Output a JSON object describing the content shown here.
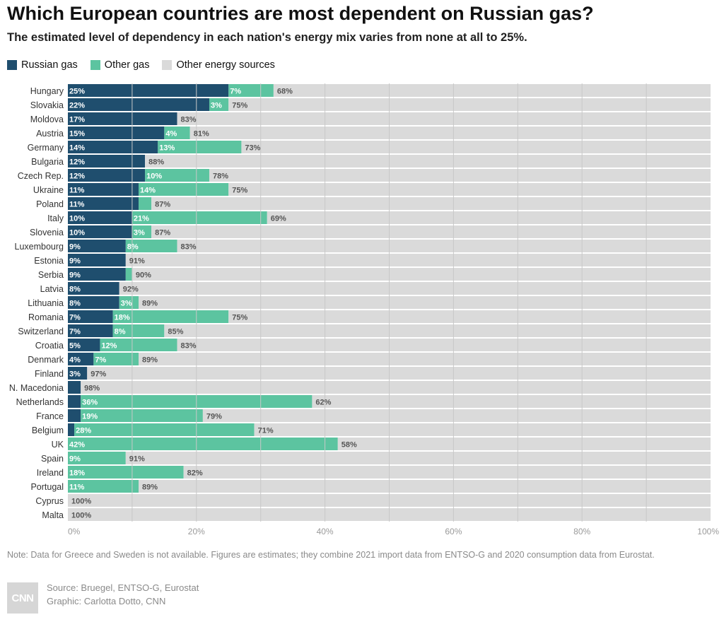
{
  "header": {
    "title": "Which European countries are most dependent on Russian gas?",
    "subtitle": "The estimated level of dependency in each nation's energy mix varies from none at all to 25%."
  },
  "legend": [
    {
      "label": "Russian gas",
      "color": "#1f4e6e"
    },
    {
      "label": "Other gas",
      "color": "#5cc4a0"
    },
    {
      "label": "Other energy sources",
      "color": "#dadada"
    }
  ],
  "chart_data": {
    "type": "bar",
    "stacked": true,
    "orientation": "horizontal",
    "categories": [
      "Hungary",
      "Slovakia",
      "Moldova",
      "Austria",
      "Germany",
      "Bulgaria",
      "Czech Rep.",
      "Ukraine",
      "Poland",
      "Italy",
      "Slovenia",
      "Luxembourg",
      "Estonia",
      "Serbia",
      "Latvia",
      "Lithuania",
      "Romania",
      "Switzerland",
      "Croatia",
      "Denmark",
      "Finland",
      "N. Macedonia",
      "Netherlands",
      "France",
      "Belgium",
      "UK",
      "Spain",
      "Ireland",
      "Portugal",
      "Cyprus",
      "Malta"
    ],
    "series": [
      {
        "name": "Russian gas",
        "color": "#1f4e6e",
        "values": [
          25,
          22,
          17,
          15,
          14,
          12,
          12,
          11,
          11,
          10,
          10,
          9,
          9,
          9,
          8,
          8,
          7,
          7,
          5,
          4,
          3,
          2,
          2,
          2,
          1,
          0,
          0,
          0,
          0,
          0,
          0
        ],
        "labels": [
          "25%",
          "22%",
          "17%",
          "15%",
          "14%",
          "12%",
          "12%",
          "11%",
          "11%",
          "10%",
          "10%",
          "9%",
          "9%",
          "9%",
          "8%",
          "8%",
          "7%",
          "7%",
          "5%",
          "4%",
          "3%",
          "",
          "",
          "",
          "",
          "",
          "",
          "",
          "",
          "",
          ""
        ]
      },
      {
        "name": "Other gas",
        "color": "#5cc4a0",
        "values": [
          7,
          3,
          0,
          4,
          13,
          0,
          10,
          14,
          2,
          21,
          3,
          8,
          0,
          1,
          0,
          3,
          18,
          8,
          12,
          7,
          0,
          0,
          36,
          19,
          28,
          42,
          9,
          18,
          11,
          0,
          0
        ],
        "labels": [
          "7%",
          "3%",
          "",
          "4%",
          "13%",
          "",
          "10%",
          "14%",
          "",
          "21%",
          "3%",
          "8%",
          "",
          "",
          "",
          "3%",
          "18%",
          "8%",
          "12%",
          "7%",
          "",
          "",
          "36%",
          "19%",
          "28%",
          "42%",
          "9%",
          "18%",
          "11%",
          "",
          ""
        ]
      },
      {
        "name": "Other energy sources",
        "color": "#dadada",
        "values": [
          68,
          75,
          83,
          81,
          73,
          88,
          78,
          75,
          87,
          69,
          87,
          83,
          91,
          90,
          92,
          89,
          75,
          85,
          83,
          89,
          97,
          98,
          62,
          79,
          71,
          58,
          91,
          82,
          89,
          100,
          100
        ],
        "labels": [
          "68%",
          "75%",
          "83%",
          "81%",
          "73%",
          "88%",
          "78%",
          "75%",
          "87%",
          "69%",
          "87%",
          "83%",
          "91%",
          "90%",
          "92%",
          "89%",
          "75%",
          "85%",
          "83%",
          "89%",
          "97%",
          "98%",
          "62%",
          "79%",
          "71%",
          "58%",
          "91%",
          "82%",
          "89%",
          "100%",
          "100%"
        ]
      }
    ],
    "xlim": [
      0,
      100
    ],
    "xticks": [
      "0%",
      "20%",
      "40%",
      "60%",
      "80%",
      "100%"
    ],
    "grid": true
  },
  "footer": {
    "note": "Note: Data for Greece and Sweden is not available. Figures are estimates; they combine 2021 import data from ENTSO-G and 2020 consumption data from Eurostat.",
    "source": "Source: Bruegel, ENTSO-G, Eurostat",
    "graphic": "Graphic: Carlotta Dotto, CNN",
    "logo": "CNN"
  }
}
